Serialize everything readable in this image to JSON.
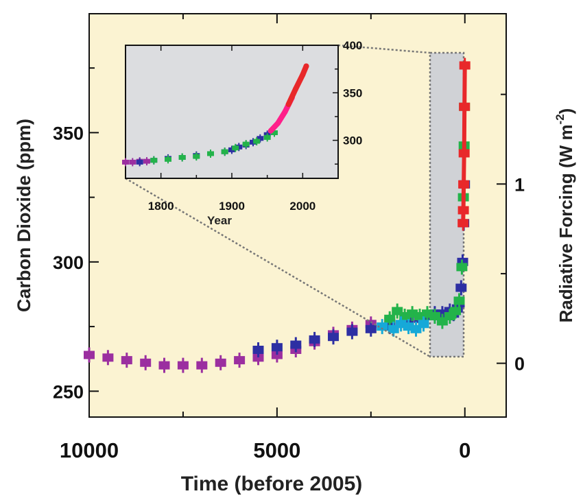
{
  "colors": {
    "plot_background": "#fbf3d2",
    "inset_background": "#dcdde0",
    "zoom_box_fill": "#d0d2d6",
    "purple_series": "#9b2fa0",
    "blue_series": "#2d2fa3",
    "green_series": "#23b34a",
    "cyan_series": "#16a9d8",
    "red_series": "#e8282a",
    "magenta_series": "#ff1f8a",
    "axis": "#111111",
    "guide_lines": "#777777"
  },
  "chart_data": [
    {
      "type": "scatter",
      "panel": "main",
      "xlabel": "Time (before 2005)",
      "ylabel": "Carbon Dioxide (ppm)",
      "y2label": "Radiative Forcing (W m-2)",
      "y2label_parts": {
        "main": "Radiative Forcing (W m",
        "sup": "-2",
        "close": ")"
      },
      "x_reversed": true,
      "xlim": [
        10000,
        -1100
      ],
      "ylim": [
        240,
        396
      ],
      "y2lim": [
        -0.3,
        1.95
      ],
      "x_ticks": [
        10000,
        5000,
        0
      ],
      "x_tick_labels": [
        "10000",
        "5000",
        "0"
      ],
      "y_ticks": [
        250,
        300,
        350
      ],
      "y_tick_labels": [
        "250",
        "300",
        "350"
      ],
      "y2_ticks": [
        0,
        1
      ],
      "y2_tick_labels": [
        "0",
        "1"
      ],
      "grid": false,
      "zoom_box": {
        "x": [
          700,
          -300
        ],
        "y": [
          254,
          393
        ]
      },
      "series": [
        {
          "color_key": "purple_series",
          "x": [
            10000,
            9500,
            9000,
            8500,
            8000,
            7500,
            7000,
            6500,
            6000,
            5500,
            5000,
            4500,
            4000,
            3500,
            3000,
            2500,
            2000
          ],
          "y": [
            264,
            263,
            262,
            261,
            260,
            260,
            260,
            261,
            262,
            263,
            264,
            266,
            269,
            272,
            274,
            276,
            277
          ]
        },
        {
          "color_key": "blue_series",
          "x": [
            5500,
            5000,
            4500,
            4000,
            3500,
            3000,
            2500,
            2000,
            1500,
            1200,
            1000,
            800,
            600,
            400,
            300,
            200,
            150,
            100,
            60,
            30,
            10
          ],
          "y": [
            266,
            267,
            268,
            270,
            271,
            273,
            274,
            275,
            277,
            278,
            279,
            280,
            280,
            281,
            280,
            282,
            284,
            290,
            300,
            315,
            330
          ]
        },
        {
          "color_key": "green_series",
          "x": [
            2000,
            1800,
            1600,
            1400,
            1200,
            1000,
            800,
            600,
            400,
            250,
            150,
            80,
            40,
            20,
            10
          ],
          "y": [
            278,
            281,
            279,
            280,
            279,
            280,
            279,
            277,
            279,
            281,
            285,
            298,
            325,
            345,
            360
          ]
        },
        {
          "color_key": "cyan_series",
          "x": [
            2200,
            1900,
            1700,
            1500,
            1300,
            1100
          ],
          "y": [
            275,
            274,
            276,
            275,
            274,
            276
          ]
        },
        {
          "color_key": "red_series",
          "x": [
            47,
            40,
            30,
            20,
            10,
            0
          ],
          "y": [
            315,
            320,
            330,
            342,
            360,
            376
          ]
        }
      ]
    },
    {
      "type": "scatter",
      "panel": "inset",
      "xlabel": "Year",
      "xlim": [
        1750,
        2050
      ],
      "ylim": [
        260,
        400
      ],
      "x_ticks": [
        1800,
        1900,
        2000
      ],
      "x_tick_labels": [
        "1800",
        "1900",
        "2000"
      ],
      "y_ticks": [
        300,
        350,
        400
      ],
      "y_tick_labels": [
        "300",
        "350",
        "400"
      ],
      "grid": false,
      "series": [
        {
          "color_key": "purple_series",
          "x": [
            1750,
            1760,
            1770,
            1780
          ],
          "y": [
            277,
            277,
            278,
            278
          ]
        },
        {
          "color_key": "blue_series",
          "x": [
            1770,
            1790,
            1810,
            1830,
            1850,
            1870,
            1890,
            1900,
            1910,
            1920,
            1930,
            1940,
            1950
          ],
          "y": [
            277,
            279,
            281,
            282,
            284,
            286,
            288,
            290,
            293,
            295,
            298,
            302,
            306
          ]
        },
        {
          "color_key": "green_series",
          "x": [
            1790,
            1810,
            1830,
            1850,
            1870,
            1890,
            1905,
            1920,
            1935,
            1950,
            1960
          ],
          "y": [
            279,
            280,
            282,
            283,
            286,
            288,
            292,
            296,
            299,
            303,
            308
          ]
        },
        {
          "color_key": "magenta_series",
          "x": [
            1955,
            1965,
            1975,
            1985
          ],
          "y": [
            310,
            318,
            330,
            345
          ]
        },
        {
          "color_key": "red_series",
          "x": [
            1980,
            1990,
            2000,
            2005
          ],
          "y": [
            338,
            354,
            369,
            378
          ]
        }
      ]
    }
  ]
}
